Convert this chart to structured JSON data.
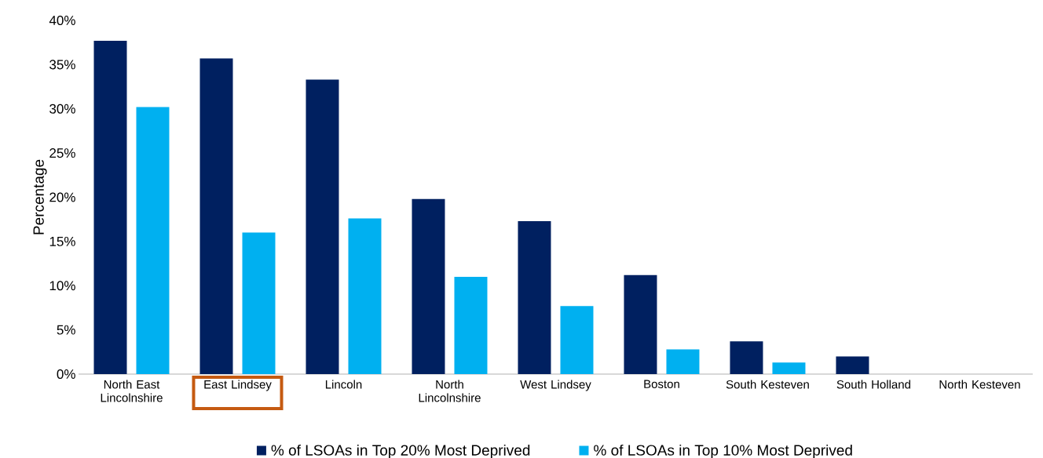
{
  "chart_data": {
    "type": "bar",
    "ylabel": "Percentage",
    "categories": [
      "North East Lincolnshire",
      "East Lindsey",
      "Lincoln",
      "North Lincolnshire",
      "West Lindsey",
      "Boston",
      "South Kesteven",
      "South Holland",
      "North Kesteven"
    ],
    "series": [
      {
        "name": "% of LSOAs in Top 20% Most Deprived",
        "color": "#002060",
        "values": [
          37.7,
          35.7,
          33.3,
          19.8,
          17.3,
          11.2,
          3.7,
          2.0,
          0
        ]
      },
      {
        "name": "% of LSOAs in Top 10% Most Deprived",
        "color": "#00B0F0",
        "values": [
          30.2,
          16.0,
          17.6,
          11.0,
          7.7,
          2.8,
          1.3,
          0,
          0
        ]
      }
    ],
    "ylim": [
      0,
      40
    ],
    "yticks": [
      {
        "value": 0,
        "label": "0%"
      },
      {
        "value": 5,
        "label": "5%"
      },
      {
        "value": 10,
        "label": "10%"
      },
      {
        "value": 15,
        "label": "15%"
      },
      {
        "value": 20,
        "label": "20%"
      },
      {
        "value": 25,
        "label": "25%"
      },
      {
        "value": 30,
        "label": "30%"
      },
      {
        "value": 35,
        "label": "35%"
      },
      {
        "value": 40,
        "label": "40%"
      }
    ],
    "legend": "bottom"
  }
}
